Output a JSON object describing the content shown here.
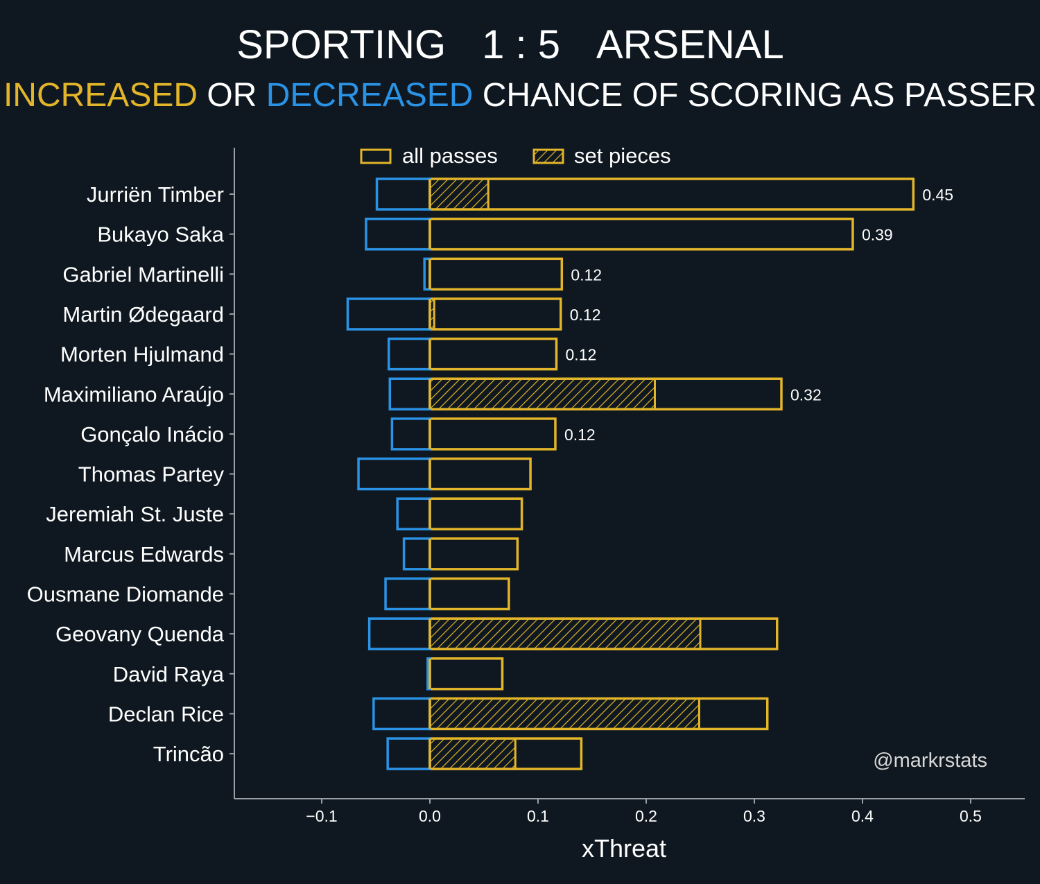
{
  "title": {
    "home_team": "SPORTING",
    "score": "1 : 5",
    "away_team": "ARSENAL"
  },
  "subtitle": {
    "part1": "INCREASED",
    "part2": " OR ",
    "part3": "DECREASED",
    "part4": " CHANCE OF SCORING AS PASSER"
  },
  "credit": "@markrstats",
  "colors": {
    "background": "#0f1820",
    "increased": "#e3b52a",
    "decreased": "#2b93e6",
    "axis": "#9aa0a6",
    "text": "#ffffff"
  },
  "chart_data": {
    "type": "bar",
    "orientation": "horizontal",
    "xlabel": "xThreat",
    "xlim": [
      -0.18,
      0.55
    ],
    "xticks": [
      -0.1,
      0.0,
      0.1,
      0.2,
      0.3,
      0.4,
      0.5
    ],
    "xtick_labels": [
      "−0.1",
      "0.0",
      "0.1",
      "0.2",
      "0.3",
      "0.4",
      "0.5"
    ],
    "grid": false,
    "legend": {
      "placement": "top-center",
      "entries": [
        {
          "label": "all passes",
          "style": "outline"
        },
        {
          "label": "set pieces",
          "style": "hatched"
        }
      ]
    },
    "players": [
      {
        "name": "Jurriën Timber",
        "increased": 0.447,
        "decreased": -0.049,
        "set_pieces": 0.054,
        "value_label": "0.45"
      },
      {
        "name": "Bukayo Saka",
        "increased": 0.391,
        "decreased": -0.059,
        "set_pieces": 0.0,
        "value_label": "0.39"
      },
      {
        "name": "Gabriel Martinelli",
        "increased": 0.122,
        "decreased": -0.005,
        "set_pieces": 0.0,
        "value_label": "0.12"
      },
      {
        "name": "Martin Ødegaard",
        "increased": 0.121,
        "decreased": -0.076,
        "set_pieces": 0.004,
        "value_label": "0.12"
      },
      {
        "name": "Morten Hjulmand",
        "increased": 0.117,
        "decreased": -0.038,
        "set_pieces": 0.0,
        "value_label": "0.12"
      },
      {
        "name": "Maximiliano Araújo",
        "increased": 0.325,
        "decreased": -0.037,
        "set_pieces": 0.208,
        "value_label": "0.32"
      },
      {
        "name": "Gonçalo Inácio",
        "increased": 0.116,
        "decreased": -0.035,
        "set_pieces": 0.0,
        "value_label": "0.12"
      },
      {
        "name": "Thomas Partey",
        "increased": 0.093,
        "decreased": -0.066,
        "set_pieces": 0.0,
        "value_label": ""
      },
      {
        "name": "Jeremiah St. Juste",
        "increased": 0.085,
        "decreased": -0.03,
        "set_pieces": 0.0,
        "value_label": ""
      },
      {
        "name": "Marcus Edwards",
        "increased": 0.081,
        "decreased": -0.024,
        "set_pieces": 0.0,
        "value_label": ""
      },
      {
        "name": "Ousmane Diomande",
        "increased": 0.073,
        "decreased": -0.041,
        "set_pieces": 0.0,
        "value_label": ""
      },
      {
        "name": "Geovany Quenda",
        "increased": 0.321,
        "decreased": -0.056,
        "set_pieces": 0.25,
        "value_label": ""
      },
      {
        "name": "David Raya",
        "increased": 0.067,
        "decreased": -0.002,
        "set_pieces": 0.0,
        "value_label": ""
      },
      {
        "name": "Declan Rice",
        "increased": 0.312,
        "decreased": -0.052,
        "set_pieces": 0.249,
        "value_label": ""
      },
      {
        "name": "Trincão",
        "increased": 0.14,
        "decreased": -0.039,
        "set_pieces": 0.079,
        "value_label": ""
      }
    ]
  }
}
